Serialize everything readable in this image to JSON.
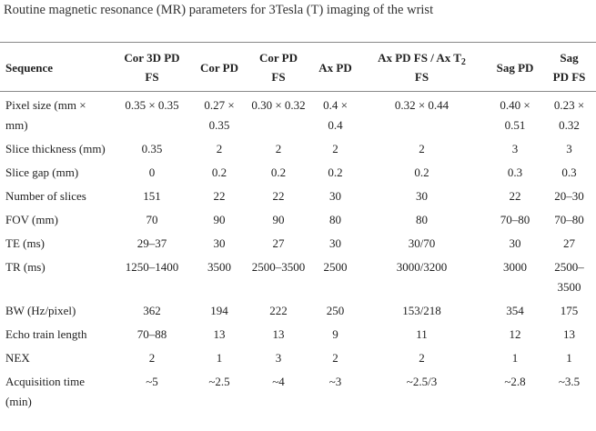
{
  "caption": "Routine magnetic resonance (MR) parameters for 3Tesla (T) imaging of the wrist",
  "columns": [
    {
      "text": "Sequence"
    },
    {
      "text": "Cor 3D PD FS"
    },
    {
      "text": "Cor PD"
    },
    {
      "text": "Cor PD FS"
    },
    {
      "text": "Ax PD"
    },
    {
      "text": "Ax PD FS / Ax T",
      "sub": "2",
      "after": " FS"
    },
    {
      "text": "Sag PD"
    },
    {
      "text": "Sag PD FS"
    }
  ],
  "rows": [
    [
      "Pixel size (mm × mm)",
      "0.35 × 0.35",
      "0.27 × 0.35",
      "0.30 × 0.32",
      "0.4 × 0.4",
      "0.32 × 0.44",
      "0.40 × 0.51",
      "0.23 × 0.32"
    ],
    [
      "Slice thickness (mm)",
      "0.35",
      "2",
      "2",
      "2",
      "2",
      "3",
      "3"
    ],
    [
      "Slice gap (mm)",
      "0",
      "0.2",
      "0.2",
      "0.2",
      "0.2",
      "0.3",
      "0.3"
    ],
    [
      "Number of slices",
      "151",
      "22",
      "22",
      "30",
      "30",
      "22",
      "20–30"
    ],
    [
      "FOV (mm)",
      "70",
      "90",
      "90",
      "80",
      "80",
      "70–80",
      "70–80"
    ],
    [
      "TE (ms)",
      "29–37",
      "30",
      "27",
      "30",
      "30/70",
      "30",
      "27"
    ],
    [
      "TR (ms)",
      "1250–1400",
      "3500",
      "2500–3500",
      "2500",
      "3000/3200",
      "3000",
      "2500–3500"
    ],
    [
      "BW (Hz/pixel)",
      "362",
      "194",
      "222",
      "250",
      "153/218",
      "354",
      "175"
    ],
    [
      "Echo train length",
      "70–88",
      "13",
      "13",
      "9",
      "11",
      "12",
      "13"
    ],
    [
      "NEX",
      "2",
      "1",
      "3",
      "2",
      "2",
      "1",
      "1"
    ],
    [
      "Acquisition time (min)",
      "~5",
      "~2.5",
      "~4",
      "~3",
      "~2.5/3",
      "~2.8",
      "~3.5"
    ]
  ]
}
